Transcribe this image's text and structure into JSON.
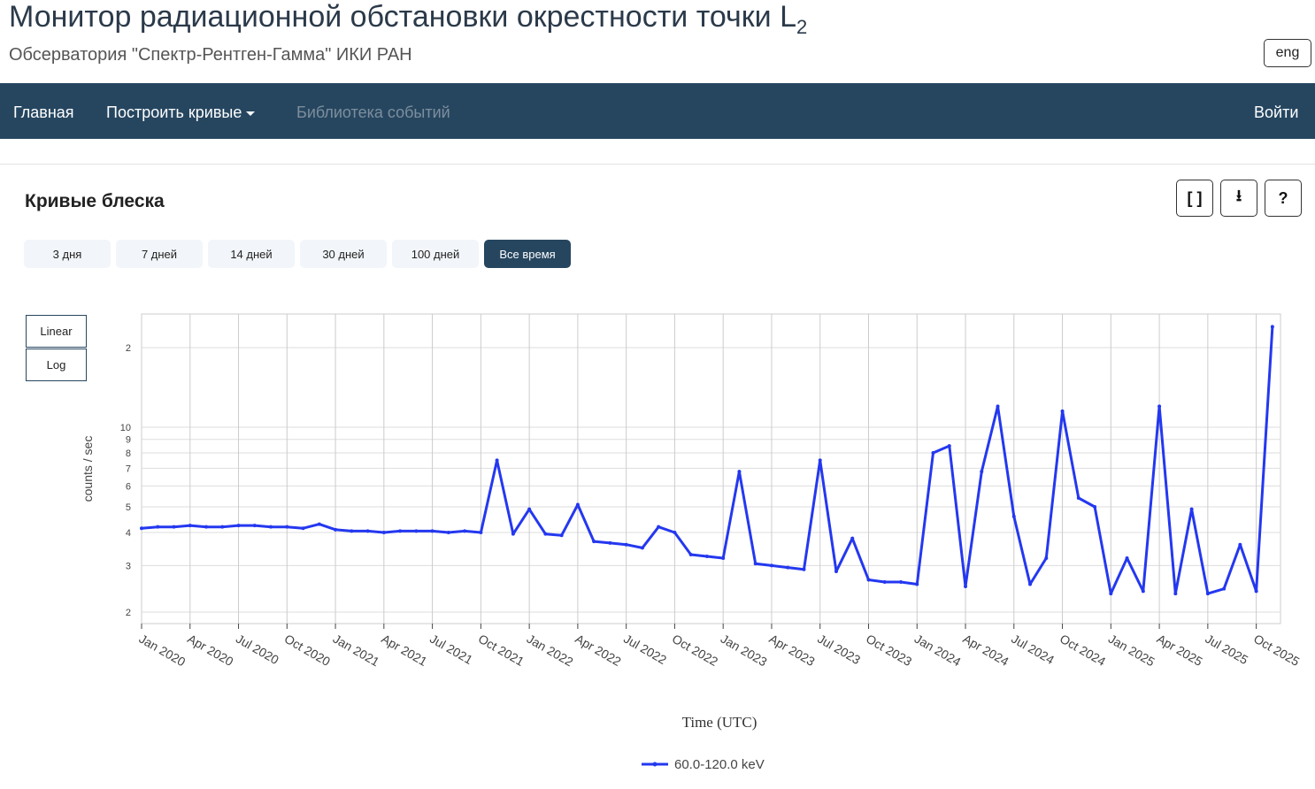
{
  "header": {
    "title": "Монитор радиационной обстановки окрестности точки L",
    "title_sub": "2",
    "subtitle": "Обсерватория \"Спектр-Рентген-Гамма\" ИКИ РАН",
    "lang": "eng"
  },
  "nav": {
    "items": [
      "Главная",
      "Построить кривые",
      "Библиотека событий"
    ],
    "login": "Войти"
  },
  "section": {
    "title": "Кривые блеска",
    "tools": [
      "[ ]",
      "⭳",
      "?"
    ]
  },
  "range_buttons": {
    "items": [
      "3 дня",
      "7 дней",
      "14 дней",
      "30 дней",
      "100 дней",
      "Все время"
    ],
    "active": 5
  },
  "scale_buttons": [
    "Linear",
    "Log"
  ],
  "chart_data": {
    "type": "line",
    "xlabel": "Time (UTC)",
    "ylabel": "counts / sec",
    "log_y": true,
    "grid": true,
    "x": [
      "2020-01",
      "2020-02",
      "2020-03",
      "2020-04",
      "2020-05",
      "2020-06",
      "2020-07",
      "2020-08",
      "2020-09",
      "2020-10",
      "2020-11",
      "2020-12",
      "2021-01",
      "2021-02",
      "2021-03",
      "2021-04",
      "2021-05",
      "2021-06",
      "2021-07",
      "2021-08",
      "2021-09",
      "2021-10",
      "2021-11",
      "2021-12",
      "2022-01",
      "2022-02",
      "2022-03",
      "2022-04",
      "2022-05",
      "2022-06",
      "2022-07",
      "2022-08",
      "2022-09",
      "2022-10",
      "2022-11",
      "2022-12",
      "2023-01",
      "2023-02",
      "2023-03",
      "2023-04",
      "2023-05",
      "2023-06",
      "2023-07",
      "2023-08",
      "2023-09",
      "2023-10",
      "2023-11",
      "2023-12",
      "2024-01",
      "2024-02",
      "2024-03",
      "2024-04",
      "2024-05",
      "2024-06",
      "2024-07",
      "2024-08",
      "2024-09",
      "2024-10",
      "2024-11",
      "2024-12",
      "2025-01",
      "2025-02",
      "2025-03",
      "2025-04",
      "2025-05",
      "2025-06",
      "2025-07",
      "2025-08",
      "2025-09",
      "2025-10",
      "2025-11"
    ],
    "series": [
      {
        "name": "60.0-120.0 keV",
        "color": "#2438f0",
        "values": [
          4.15,
          4.2,
          4.2,
          4.25,
          4.2,
          4.2,
          4.25,
          4.25,
          4.2,
          4.2,
          4.15,
          4.3,
          4.1,
          4.05,
          4.05,
          4.0,
          4.05,
          4.05,
          4.05,
          4.0,
          4.05,
          4.0,
          7.5,
          3.95,
          4.9,
          3.95,
          3.9,
          5.1,
          3.7,
          3.65,
          3.6,
          3.5,
          4.2,
          4.0,
          3.3,
          3.25,
          3.2,
          6.8,
          3.05,
          3.0,
          2.95,
          2.9,
          7.5,
          2.85,
          3.8,
          2.65,
          2.6,
          2.6,
          2.55,
          8.0,
          8.5,
          2.5,
          6.8,
          12,
          4.6,
          2.55,
          3.2,
          11.5,
          5.4,
          5.0,
          2.35,
          3.2,
          2.4,
          12,
          2.35,
          4.9,
          2.35,
          2.45,
          3.6,
          2.4,
          24
        ]
      }
    ],
    "xlim": [
      "2020-01",
      "2025-11"
    ],
    "xticks": [
      {
        "value": "2020-01",
        "label": "Jan 2020"
      },
      {
        "value": "2020-04",
        "label": "Apr 2020"
      },
      {
        "value": "2020-07",
        "label": "Jul 2020"
      },
      {
        "value": "2020-10",
        "label": "Oct 2020"
      },
      {
        "value": "2021-01",
        "label": "Jan 2021"
      },
      {
        "value": "2021-04",
        "label": "Apr 2021"
      },
      {
        "value": "2021-07",
        "label": "Jul 2021"
      },
      {
        "value": "2021-10",
        "label": "Oct 2021"
      },
      {
        "value": "2022-01",
        "label": "Jan 2022"
      },
      {
        "value": "2022-04",
        "label": "Apr 2022"
      },
      {
        "value": "2022-07",
        "label": "Jul 2022"
      },
      {
        "value": "2022-10",
        "label": "Oct 2022"
      },
      {
        "value": "2023-01",
        "label": "Jan 2023"
      },
      {
        "value": "2023-04",
        "label": "Apr 2023"
      },
      {
        "value": "2023-07",
        "label": "Jul 2023"
      },
      {
        "value": "2023-10",
        "label": "Oct 2023"
      },
      {
        "value": "2024-01",
        "label": "Jan 2024"
      },
      {
        "value": "2024-04",
        "label": "Apr 2024"
      },
      {
        "value": "2024-07",
        "label": "Jul 2024"
      },
      {
        "value": "2024-10",
        "label": "Oct 2024"
      },
      {
        "value": "2025-01",
        "label": "Jan 2025"
      },
      {
        "value": "2025-04",
        "label": "Apr 2025"
      },
      {
        "value": "2025-07",
        "label": "Jul 2025"
      },
      {
        "value": "2025-10",
        "label": "Oct 2025"
      }
    ],
    "ylim": [
      1.81,
      26.8
    ],
    "yticks": [
      2,
      3,
      4,
      5,
      6,
      7,
      8,
      9,
      10,
      {
        "value": 20,
        "label": "2"
      }
    ]
  }
}
